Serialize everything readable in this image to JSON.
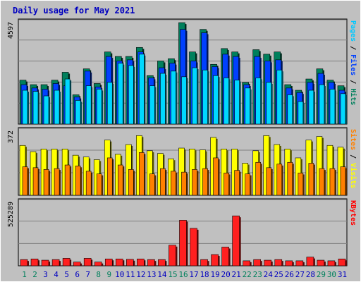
{
  "chart_data": {
    "type": "bar",
    "title": "Daily usage for May 2021",
    "categories": [
      "1",
      "2",
      "3",
      "4",
      "5",
      "6",
      "7",
      "8",
      "9",
      "10",
      "11",
      "12",
      "13",
      "14",
      "15",
      "16",
      "17",
      "18",
      "19",
      "20",
      "21",
      "22",
      "23",
      "24",
      "25",
      "26",
      "27",
      "28",
      "29",
      "30",
      "31"
    ],
    "weekend_days": [
      "1",
      "2",
      "8",
      "9",
      "15",
      "16",
      "22",
      "23",
      "29",
      "30"
    ],
    "panels": [
      {
        "id": "top",
        "axis_max_label": "4597",
        "ylim": [
          0,
          4597
        ],
        "side_labels": [
          {
            "text": "Pages",
            "color": "#00c8ff"
          },
          {
            "text": " / ",
            "color": "#000000"
          },
          {
            "text": "Files",
            "color": "#0040ff"
          },
          {
            "text": " / ",
            "color": "#000000"
          },
          {
            "text": "Hits",
            "color": "#00805c"
          }
        ],
        "series": [
          {
            "name": "Hits",
            "color": "#00805c",
            "values": [
              1950,
              1750,
              1750,
              1950,
              2300,
              1300,
              2450,
              1800,
              3200,
              3000,
              3000,
              3400,
              2150,
              2800,
              2900,
              4500,
              3200,
              4200,
              2650,
              3350,
              3200,
              1850,
              3300,
              3100,
              3200,
              1750,
              1500,
              2000,
              2450,
              1950,
              1700
            ]
          },
          {
            "name": "Files",
            "color": "#0040ff",
            "values": [
              1750,
              1600,
              1550,
              1800,
              1700,
              1200,
              2350,
              1650,
              3000,
              2800,
              2850,
              3200,
              2050,
              2500,
              2700,
              4200,
              2800,
              4050,
              2550,
              3100,
              3000,
              1750,
              3000,
              2800,
              2850,
              1600,
              1400,
              1850,
              2250,
              1850,
              1500
            ]
          },
          {
            "name": "Pages",
            "color": "#00d8ff",
            "values": [
              1500,
              1450,
              1250,
              1500,
              2000,
              1050,
              1700,
              1550,
              1850,
              2700,
              2600,
              3100,
              1700,
              2250,
              2350,
              2100,
              2500,
              2400,
              2150,
              2050,
              1950,
              1600,
              2050,
              1850,
              2400,
              1300,
              1000,
              1500,
              1750,
              1550,
              1350
            ]
          }
        ]
      },
      {
        "id": "middle",
        "axis_max_label": "372",
        "ylim": [
          0,
          372
        ],
        "side_labels": [
          {
            "text": "Sites",
            "color": "#ff8000"
          },
          {
            "text": " / ",
            "color": "#000000"
          },
          {
            "text": "Visits",
            "color": "#ffff00"
          }
        ],
        "series": [
          {
            "name": "Visits",
            "color": "#ffff00",
            "values": [
              280,
              245,
              260,
              260,
              260,
              225,
              215,
              200,
              310,
              230,
              285,
              335,
              250,
              235,
              205,
              265,
              260,
              255,
              325,
              260,
              260,
              180,
              250,
              335,
              285,
              260,
              210,
              310,
              330,
              280,
              270
            ]
          },
          {
            "name": "Sites",
            "color": "#ff8000",
            "values": [
              160,
              155,
              145,
              150,
              170,
              165,
              135,
              120,
              210,
              170,
              145,
              240,
              120,
              150,
              135,
              130,
              145,
              150,
              210,
              125,
              140,
              120,
              185,
              155,
              175,
              185,
              125,
              180,
              150,
              150,
              160
            ]
          }
        ]
      },
      {
        "id": "bottom",
        "axis_max_label": "525289",
        "ylim": [
          0,
          525289
        ],
        "side_labels": [
          {
            "text": "KBytes",
            "color": "#ff0000"
          }
        ],
        "series": [
          {
            "name": "KBytes",
            "color": "#ff2020",
            "values": [
              50000,
              55000,
              45000,
              50000,
              60000,
              30000,
              60000,
              30000,
              55000,
              55000,
              52000,
              55000,
              50000,
              50000,
              165000,
              365000,
              300000,
              50000,
              90000,
              150000,
              400000,
              40000,
              50000,
              45000,
              50000,
              40000,
              40000,
              70000,
              45000,
              40000,
              55000
            ]
          }
        ]
      }
    ],
    "grid": true,
    "colors": {
      "background": "#c0c0c0",
      "plot_background": "#c0c0c0",
      "title_color": "#0000c0",
      "weekday_label": "#0000c0",
      "weekend_label": "#00805c",
      "grid_line": "#808080"
    }
  }
}
